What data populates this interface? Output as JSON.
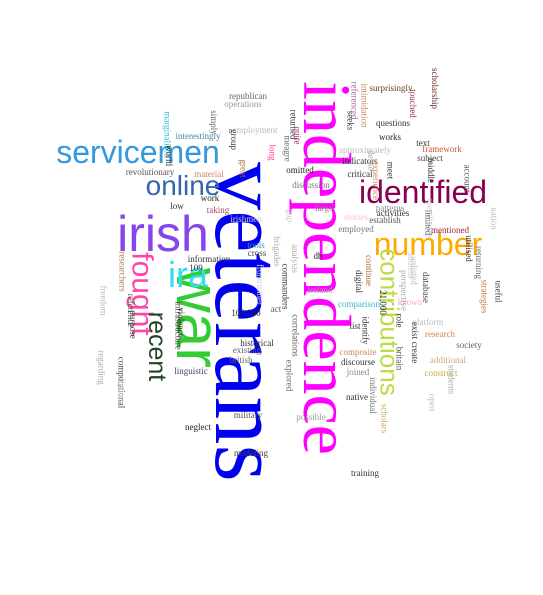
{
  "words": [
    {
      "text": "veterans",
      "color": "#0000ee",
      "family": "serif",
      "rot": 90
    },
    {
      "text": "independence",
      "color": "#ff00ff",
      "family": "serif",
      "rot": 90
    },
    {
      "text": "war",
      "color": "#33cc33",
      "family": "sans",
      "rot": 90
    },
    {
      "text": "irish",
      "color": "#8844ee",
      "family": "sans",
      "rot": 0
    },
    {
      "text": "servicemen",
      "color": "#3399dd",
      "family": "sans",
      "rot": 0
    },
    {
      "text": "identified",
      "color": "#880055",
      "family": "sans",
      "rot": 0
    },
    {
      "text": "number",
      "color": "#ffaa00",
      "family": "sans",
      "rot": 0
    },
    {
      "text": "contributions",
      "color": "#bbdd44",
      "family": "sans",
      "rot": 90
    },
    {
      "text": "online",
      "color": "#3366aa",
      "family": "sans",
      "rot": 0
    },
    {
      "text": "ira",
      "color": "#33ddee",
      "family": "sans",
      "rot": 0
    },
    {
      "text": "fought",
      "color": "#ff44aa",
      "family": "sans",
      "rot": 90
    },
    {
      "text": "recent",
      "color": "#224422",
      "family": "sans",
      "rot": 90
    },
    {
      "text": "republican",
      "color": "#666666",
      "family": "serif",
      "rot": 0
    },
    {
      "text": "operations",
      "color": "#999999",
      "family": "serif",
      "rot": 0
    },
    {
      "text": "employment",
      "color": "#bbbbbb",
      "family": "serif",
      "rot": 0
    },
    {
      "text": "interestingly",
      "color": "#448899",
      "family": "serif",
      "rot": 0
    },
    {
      "text": "revolutionary",
      "color": "#555555",
      "family": "serif",
      "rot": 0
    },
    {
      "text": "surprisingly",
      "color": "#664422",
      "family": "serif",
      "rot": 0
    },
    {
      "text": "questions",
      "color": "#333333",
      "family": "serif",
      "rot": 0
    },
    {
      "text": "works",
      "color": "#222222",
      "family": "serif",
      "rot": 0
    },
    {
      "text": "text",
      "color": "#333333",
      "family": "serif",
      "rot": 0
    },
    {
      "text": "subject",
      "color": "#444444",
      "family": "serif",
      "rot": 0
    },
    {
      "text": "framework",
      "color": "#cc5533",
      "family": "serif",
      "rot": 0
    },
    {
      "text": "indicators",
      "color": "#333333",
      "family": "serif",
      "rot": 0
    },
    {
      "text": "critical",
      "color": "#333333",
      "family": "serif",
      "rot": 0
    },
    {
      "text": "discussion",
      "color": "#777777",
      "family": "serif",
      "rot": 0
    },
    {
      "text": "omitted",
      "color": "#222222",
      "family": "serif",
      "rot": 0
    },
    {
      "text": "approximately",
      "color": "#bbbbbb",
      "family": "serif",
      "rot": 0
    },
    {
      "text": "scholarship",
      "color": "#662222",
      "family": "serif",
      "rot": 90
    },
    {
      "text": "touched",
      "color": "#883344",
      "family": "serif",
      "rot": 90
    },
    {
      "text": "referenced",
      "color": "#aa6699",
      "family": "serif",
      "rot": 90
    },
    {
      "text": "intimidation",
      "color": "#cc8855",
      "family": "serif",
      "rot": 90
    },
    {
      "text": "middle",
      "color": "#333333",
      "family": "serif",
      "rot": 90
    },
    {
      "text": "taking",
      "color": "#aa4466",
      "family": "serif",
      "rot": 0
    },
    {
      "text": "material",
      "color": "#cc8866",
      "family": "serif",
      "rot": 0
    },
    {
      "text": "work",
      "color": "#222222",
      "family": "serif",
      "rot": 0
    },
    {
      "text": "low",
      "color": "#333333",
      "family": "serif",
      "rot": 0
    },
    {
      "text": "irishmen",
      "color": "#cccccc",
      "family": "serif",
      "rot": 0
    },
    {
      "text": "stories",
      "color": "#ffbbcc",
      "family": "serif",
      "rot": 0
    },
    {
      "text": "patterns",
      "color": "#888888",
      "family": "serif",
      "rot": 0
    },
    {
      "text": "establish",
      "color": "#555555",
      "family": "serif",
      "rot": 0
    },
    {
      "text": "employed",
      "color": "#777777",
      "family": "serif",
      "rot": 0
    },
    {
      "text": "activities",
      "color": "#333333",
      "family": "serif",
      "rot": 0
    },
    {
      "text": "mentioned",
      "color": "#aa2244",
      "family": "serif",
      "rot": 0
    },
    {
      "text": "large",
      "color": "#888888",
      "family": "serif",
      "rot": 0
    },
    {
      "text": "tools",
      "color": "#3399aa",
      "family": "serif",
      "rot": 0
    },
    {
      "text": "cross",
      "color": "#444444",
      "family": "serif",
      "rot": 0
    },
    {
      "text": "db",
      "color": "#222222",
      "family": "serif",
      "rot": 0
    },
    {
      "text": "information",
      "color": "#333333",
      "family": "serif",
      "rot": 0
    },
    {
      "text": "109",
      "color": "#333333",
      "family": "serif",
      "rot": 0
    },
    {
      "text": "ireland",
      "color": "#aaaaaa",
      "family": "serif",
      "rot": 0
    },
    {
      "text": "comparison",
      "color": "#33bbcc",
      "family": "serif",
      "rot": 0
    },
    {
      "text": "100,000",
      "color": "#222222",
      "family": "serif",
      "rot": 0
    },
    {
      "text": "act",
      "color": "#555555",
      "family": "serif",
      "rot": 0
    },
    {
      "text": "list",
      "color": "#333333",
      "family": "serif",
      "rot": 0
    },
    {
      "text": "utilised",
      "color": "#333333",
      "family": "serif",
      "rot": 90
    },
    {
      "text": "returning",
      "color": "#666666",
      "family": "serif",
      "rot": 90
    },
    {
      "text": "useful",
      "color": "#444444",
      "family": "serif",
      "rot": 90
    },
    {
      "text": "strategies",
      "color": "#bb7744",
      "family": "serif",
      "rot": 90
    },
    {
      "text": "database",
      "color": "#444444",
      "family": "serif",
      "rot": 90
    },
    {
      "text": "address",
      "color": "#ccccdd",
      "family": "serif",
      "rot": 90
    },
    {
      "text": "known",
      "color": "#ffaabb",
      "family": "serif",
      "rot": 0
    },
    {
      "text": "platform",
      "color": "#bbbbbb",
      "family": "serif",
      "rot": 0
    },
    {
      "text": "research",
      "color": "#cc8855",
      "family": "serif",
      "rot": 0
    },
    {
      "text": "society",
      "color": "#666666",
      "family": "serif",
      "rot": 0
    },
    {
      "text": "additional",
      "color": "#ccaa77",
      "family": "serif",
      "rot": 0
    },
    {
      "text": "construct",
      "color": "#ccaa44",
      "family": "serif",
      "rot": 0
    },
    {
      "text": "students",
      "color": "#aaaaaa",
      "family": "serif",
      "rot": 90
    },
    {
      "text": "open",
      "color": "#bbbbcc",
      "family": "serif",
      "rot": 90
    },
    {
      "text": "composite",
      "color": "#cc8855",
      "family": "serif",
      "rot": 0
    },
    {
      "text": "discourse",
      "color": "#333333",
      "family": "serif",
      "rot": 0
    },
    {
      "text": "joined",
      "color": "#888888",
      "family": "serif",
      "rot": 0
    },
    {
      "text": "native",
      "color": "#333333",
      "family": "serif",
      "rot": 0
    },
    {
      "text": "individual",
      "color": "#777777",
      "family": "serif",
      "rot": 90
    },
    {
      "text": "scholars",
      "color": "#ccaa55",
      "family": "serif",
      "rot": 90
    },
    {
      "text": "possible",
      "color": "#999999",
      "family": "serif",
      "rot": 0
    },
    {
      "text": "explored",
      "color": "#666666",
      "family": "serif",
      "rot": 90
    },
    {
      "text": "training",
      "color": "#333333",
      "family": "serif",
      "rot": 0
    },
    {
      "text": "historical",
      "color": "#333333",
      "family": "serif",
      "rot": 0
    },
    {
      "text": "linguistic",
      "color": "#444466",
      "family": "serif",
      "rot": 0
    },
    {
      "text": "existing",
      "color": "#666666",
      "family": "serif",
      "rot": 0
    },
    {
      "text": "british",
      "color": "#666666",
      "family": "serif",
      "rot": 0
    },
    {
      "text": "military",
      "color": "#555555",
      "family": "serif",
      "rot": 0
    },
    {
      "text": "neglect",
      "color": "#222222",
      "family": "serif",
      "rot": 0
    },
    {
      "text": "modeling",
      "color": "#444444",
      "family": "serif",
      "rot": 0
    },
    {
      "text": "correlations",
      "color": "#555555",
      "family": "serif",
      "rot": 90
    },
    {
      "text": "commanders",
      "color": "#333333",
      "family": "serif",
      "rot": 90
    },
    {
      "text": "brigades",
      "color": "#aaaaaa",
      "family": "serif",
      "rot": 90
    },
    {
      "text": "frontrunner",
      "color": "#ccccdd",
      "family": "serif",
      "rot": 90
    },
    {
      "text": "analysis",
      "color": "#aaaaaa",
      "family": "serif",
      "rot": 90
    },
    {
      "text": "digital",
      "color": "#333333",
      "family": "serif",
      "rot": 90
    },
    {
      "text": "continue",
      "color": "#aa6633",
      "family": "serif",
      "rot": 90
    },
    {
      "text": "identify",
      "color": "#333333",
      "family": "serif",
      "rot": 90
    },
    {
      "text": "21,000",
      "color": "#222222",
      "family": "serif",
      "rot": 90
    },
    {
      "text": "britain",
      "color": "#555555",
      "family": "serif",
      "rot": 90
    },
    {
      "text": "create",
      "color": "#333333",
      "family": "serif",
      "rot": 90
    },
    {
      "text": "exist",
      "color": "#333333",
      "family": "serif",
      "rot": 90
    },
    {
      "text": "role",
      "color": "#333333",
      "family": "serif",
      "rot": 90
    },
    {
      "text": "perspective",
      "color": "#aaaaaa",
      "family": "serif",
      "rot": 90
    },
    {
      "text": "unlisted",
      "color": "#bbbbbb",
      "family": "serif",
      "rot": 90
    },
    {
      "text": "limited",
      "color": "#555555",
      "family": "serif",
      "rot": 90
    },
    {
      "text": "specifically",
      "color": "#ccccdd",
      "family": "serif",
      "rot": 90
    },
    {
      "text": "nation",
      "color": "#bbbbcc",
      "family": "serif",
      "rot": 90
    },
    {
      "text": "account",
      "color": "#555555",
      "family": "serif",
      "rot": 90
    },
    {
      "text": "meet",
      "color": "#333333",
      "family": "serif",
      "rot": 90
    },
    {
      "text": "experience",
      "color": "#cc8855",
      "family": "serif",
      "rot": 90
    },
    {
      "text": "dense",
      "color": "#aaaaaa",
      "family": "serif",
      "rot": 90
    },
    {
      "text": "seeks",
      "color": "#333333",
      "family": "serif",
      "rot": 90
    },
    {
      "text": "infrastructure",
      "color": "#444444",
      "family": "serif",
      "rot": 90
    },
    {
      "text": "violence",
      "color": "#333333",
      "family": "serif",
      "rot": 90
    },
    {
      "text": "computational",
      "color": "#444444",
      "family": "serif",
      "rot": 90
    },
    {
      "text": "purpose",
      "color": "#333333",
      "family": "serif",
      "rot": 90
    },
    {
      "text": "researchers",
      "color": "#aa7744",
      "family": "serif",
      "rot": 90
    },
    {
      "text": "regarding",
      "color": "#aaaaaa",
      "family": "serif",
      "rot": 90
    },
    {
      "text": "figures",
      "color": "#cccccc",
      "family": "serif",
      "rot": 90
    },
    {
      "text": "freedom",
      "color": "#bbbbbb",
      "family": "serif",
      "rot": 90
    },
    {
      "text": "reference",
      "color": "#555555",
      "family": "serif",
      "rot": 90
    },
    {
      "text": "marginalised",
      "color": "#33bbdd",
      "family": "serif",
      "rot": 90
    },
    {
      "text": "world",
      "color": "#333333",
      "family": "serif",
      "rot": 90
    },
    {
      "text": "simply",
      "color": "#666666",
      "family": "serif",
      "rot": 90
    },
    {
      "text": "returned",
      "color": "#333333",
      "family": "serif",
      "rot": 90
    },
    {
      "text": "quite",
      "color": "#aa2266",
      "family": "serif",
      "rot": 90
    },
    {
      "text": "group",
      "color": "#333333",
      "family": "serif",
      "rot": 90
    },
    {
      "text": "meagre",
      "color": "#666666",
      "family": "serif",
      "rot": 90
    },
    {
      "text": "long",
      "color": "#ff3399",
      "family": "serif",
      "rot": 90
    },
    {
      "text": "great",
      "color": "#aa6633",
      "family": "serif",
      "rot": 90
    },
    {
      "text": "gap",
      "color": "#cccccc",
      "family": "serif",
      "rot": 90
    }
  ]
}
